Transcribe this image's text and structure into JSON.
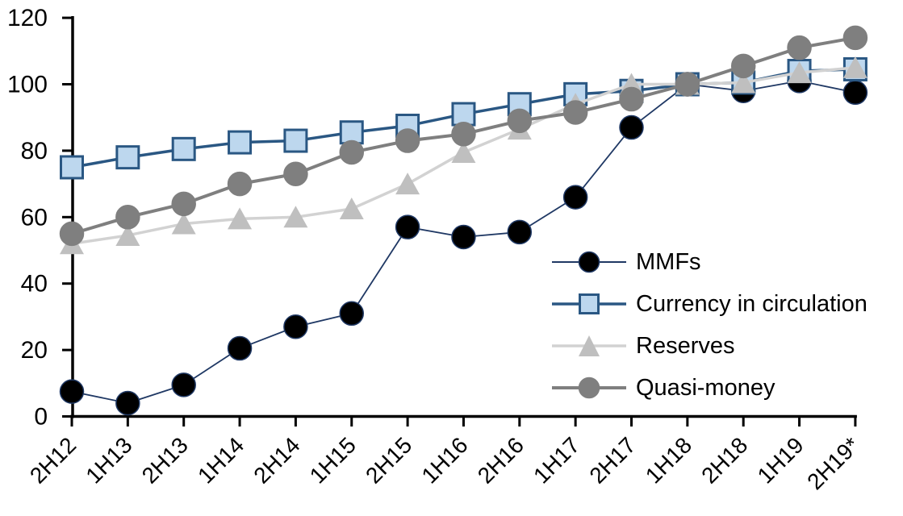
{
  "figure": {
    "background": "#ffffff",
    "title": ""
  },
  "chart_data": {
    "type": "line",
    "title": "",
    "xlabel": "",
    "ylabel": "",
    "grid": false,
    "legend_position": "inside-right",
    "ylim": [
      0,
      120
    ],
    "yticks": [
      0,
      20,
      40,
      60,
      80,
      100,
      120
    ],
    "categories": [
      "2H12",
      "1H13",
      "2H13",
      "1H14",
      "2H14",
      "1H15",
      "2H15",
      "1H16",
      "2H16",
      "1H17",
      "2H17",
      "1H18",
      "2H18",
      "1H19",
      "2H19*"
    ],
    "series": [
      {
        "name": "MMFs",
        "marker": "circle",
        "marker_fill": "#000000",
        "marker_stroke": "#1f3864",
        "line_color": "#1f3864",
        "line_width": 1.8,
        "values": [
          7.5,
          4,
          9.5,
          20.5,
          27,
          31,
          57,
          54,
          55.5,
          66,
          87,
          100,
          98,
          101,
          97.5
        ]
      },
      {
        "name": "Currency in circulation",
        "marker": "square",
        "marker_fill": "#bdd7ee",
        "marker_stroke": "#2a5783",
        "line_color": "#2a5783",
        "line_width": 3.5,
        "values": [
          75,
          78,
          80.5,
          82.5,
          83,
          85.5,
          87.5,
          91,
          94,
          97,
          98,
          100,
          100.5,
          104,
          104.5
        ]
      },
      {
        "name": "Reserves",
        "marker": "triangle",
        "marker_fill": "#bfbfbf",
        "marker_stroke": "#bfbfbf",
        "line_color": "#d2d2d2",
        "line_width": 3.5,
        "values": [
          52,
          54.5,
          58,
          59.5,
          60,
          62.5,
          70,
          79.5,
          86.5,
          94,
          100,
          100,
          100.5,
          103.5,
          105
        ]
      },
      {
        "name": "Quasi-money",
        "marker": "circle",
        "marker_fill": "#7f7f7f",
        "marker_stroke": "#7f7f7f",
        "line_color": "#7f7f7f",
        "line_width": 4,
        "values": [
          55,
          60,
          64,
          70,
          73,
          79.5,
          83,
          85,
          89,
          91.5,
          95.5,
          100,
          105.5,
          111,
          114
        ]
      }
    ],
    "axis_color": "#000000"
  }
}
